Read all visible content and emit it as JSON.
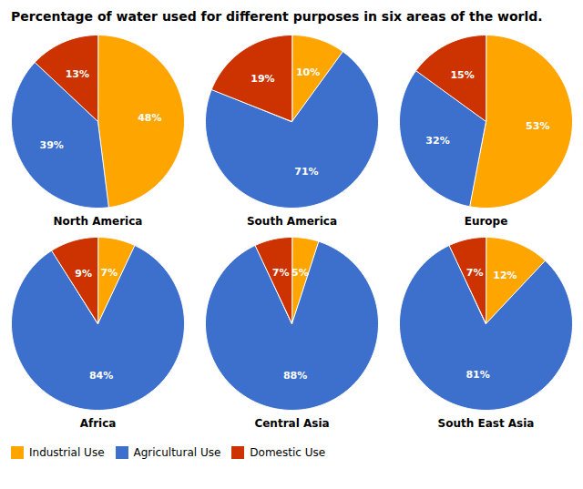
{
  "chart_data": {
    "type": "pie",
    "title": "Percentage of water used for different purposes in six areas of the world.",
    "categories": [
      "Industrial Use",
      "Agricultural Use",
      "Domestic Use"
    ],
    "colors": [
      "#FFA500",
      "#3d6fcc",
      "#cc3300"
    ],
    "series": [
      {
        "name": "North America",
        "values": [
          48,
          39,
          13
        ],
        "value_labels": [
          "48%",
          "39%",
          "13%"
        ]
      },
      {
        "name": "South America",
        "values": [
          10,
          71,
          19
        ],
        "value_labels": [
          "10%",
          "71%",
          "19%"
        ]
      },
      {
        "name": "Europe",
        "values": [
          53,
          32,
          15
        ],
        "value_labels": [
          "53%",
          "32%",
          "15%"
        ]
      },
      {
        "name": "Africa",
        "values": [
          7,
          84,
          9
        ],
        "value_labels": [
          "7%",
          "84%",
          "9%"
        ]
      },
      {
        "name": "Central Asia",
        "values": [
          5,
          88,
          7
        ],
        "value_labels": [
          "5%",
          "88%",
          "7%"
        ]
      },
      {
        "name": "South East Asia",
        "values": [
          12,
          81,
          7
        ],
        "value_labels": [
          "12%",
          "81%",
          "7%"
        ]
      }
    ],
    "data_labels": true,
    "legend": "lower left"
  }
}
